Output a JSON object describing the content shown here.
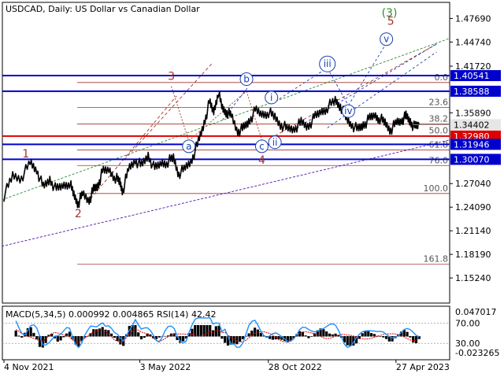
{
  "chart_data": {
    "type": "line",
    "title": "USDCAD, Daily:  US Dollar vs Canadian Dollar",
    "ylim": [
      1.121,
      1.497
    ],
    "y_ticks": [
      "1.47690",
      "1.44740",
      "1.41720",
      "1.38588",
      "1.35890",
      "1.32980",
      "1.30070",
      "1.27040",
      "1.24090",
      "1.21140",
      "1.18190",
      "1.15240"
    ],
    "x_ticks": [
      {
        "label": "4 Nov 2021",
        "t": 0.0
      },
      {
        "label": "3 May 2022",
        "t": 0.311
      },
      {
        "label": "28 Oct 2022",
        "t": 0.605
      },
      {
        "label": "27 Apr 2023",
        "t": 0.897
      }
    ],
    "price_series": [
      [
        0.0,
        1.255
      ],
      [
        0.02,
        1.28
      ],
      [
        0.04,
        1.278
      ],
      [
        0.06,
        1.296
      ],
      [
        0.075,
        1.288
      ],
      [
        0.09,
        1.265
      ],
      [
        0.105,
        1.276
      ],
      [
        0.12,
        1.262
      ],
      [
        0.135,
        1.268
      ],
      [
        0.15,
        1.272
      ],
      [
        0.16,
        1.256
      ],
      [
        0.17,
        1.246
      ],
      [
        0.18,
        1.257
      ],
      [
        0.195,
        1.25
      ],
      [
        0.205,
        1.262
      ],
      [
        0.215,
        1.268
      ],
      [
        0.225,
        1.284
      ],
      [
        0.24,
        1.288
      ],
      [
        0.255,
        1.278
      ],
      [
        0.265,
        1.272
      ],
      [
        0.272,
        1.262
      ],
      [
        0.285,
        1.288
      ],
      [
        0.3,
        1.3
      ],
      [
        0.315,
        1.292
      ],
      [
        0.33,
        1.306
      ],
      [
        0.345,
        1.288
      ],
      [
        0.36,
        1.296
      ],
      [
        0.375,
        1.298
      ],
      [
        0.388,
        1.302
      ],
      [
        0.4,
        1.283
      ],
      [
        0.415,
        1.289
      ],
      [
        0.43,
        1.301
      ],
      [
        0.445,
        1.322
      ],
      [
        0.458,
        1.346
      ],
      [
        0.47,
        1.371
      ],
      [
        0.48,
        1.36
      ],
      [
        0.49,
        1.385
      ],
      [
        0.5,
        1.364
      ],
      [
        0.51,
        1.36
      ],
      [
        0.52,
        1.355
      ],
      [
        0.535,
        1.336
      ],
      [
        0.548,
        1.339
      ],
      [
        0.56,
        1.348
      ],
      [
        0.575,
        1.361
      ],
      [
        0.59,
        1.357
      ],
      [
        0.605,
        1.36
      ],
      [
        0.62,
        1.353
      ],
      [
        0.635,
        1.344
      ],
      [
        0.65,
        1.338
      ],
      [
        0.665,
        1.34
      ],
      [
        0.68,
        1.346
      ],
      [
        0.695,
        1.342
      ],
      [
        0.71,
        1.352
      ],
      [
        0.725,
        1.36
      ],
      [
        0.74,
        1.366
      ],
      [
        0.758,
        1.374
      ],
      [
        0.77,
        1.368
      ],
      [
        0.782,
        1.352
      ],
      [
        0.795,
        1.345
      ],
      [
        0.81,
        1.337
      ],
      [
        0.822,
        1.344
      ],
      [
        0.835,
        1.35
      ],
      [
        0.848,
        1.356
      ],
      [
        0.86,
        1.352
      ],
      [
        0.872,
        1.346
      ],
      [
        0.885,
        1.338
      ],
      [
        0.898,
        1.346
      ],
      [
        0.91,
        1.35
      ],
      [
        0.92,
        1.354
      ],
      [
        0.93,
        1.348
      ],
      [
        0.94,
        1.34
      ],
      [
        0.95,
        1.344
      ]
    ],
    "horizontal_levels": [
      {
        "value": 1.40541,
        "color": "#0000cc",
        "label": "1.40541"
      },
      {
        "value": 1.38588,
        "color": "#0000cc",
        "label": "1.38588"
      },
      {
        "value": 1.3298,
        "color": "#dd0000",
        "label": "1.32980"
      },
      {
        "value": 1.31946,
        "color": "#0000cc",
        "label": "1.31946"
      },
      {
        "value": 1.3007,
        "color": "#0000cc",
        "label": "1.30070"
      }
    ],
    "current_price": {
      "value": 1.34402,
      "label": "1.34402"
    },
    "fibonacci_levels": [
      {
        "label": "0.0",
        "value": 1.3968
      },
      {
        "label": "23.6",
        "value": 1.3655
      },
      {
        "label": "38.2",
        "value": 1.345
      },
      {
        "label": "50.0",
        "value": 1.33
      },
      {
        "label": "61.8",
        "value": 1.3125
      },
      {
        "label": "76.0",
        "value": 1.293
      },
      {
        "label": "100.0",
        "value": 1.258
      },
      {
        "label": "161.8",
        "value": 1.1695
      }
    ],
    "wave_labels": [
      {
        "text": "1",
        "t": 0.05,
        "y": 1.308,
        "color": "#a0362b",
        "circled": false
      },
      {
        "text": "2",
        "t": 0.17,
        "y": 1.233,
        "color": "#a0362b",
        "circled": false
      },
      {
        "text": "3",
        "t": 0.383,
        "y": 1.405,
        "color": "#a0362b",
        "circled": false
      },
      {
        "text": "4",
        "t": 0.59,
        "y": 1.3,
        "color": "#a0362b",
        "circled": false
      },
      {
        "text": "5",
        "t": 0.885,
        "y": 1.474,
        "color": "#a0362b",
        "circled": false
      },
      {
        "text": "(3)",
        "t": 0.882,
        "y": 1.484,
        "color": "#2e8b2e",
        "circled": false
      },
      {
        "text": "a",
        "t": 0.423,
        "y": 1.317,
        "color": "#1a3fb0",
        "circled": true
      },
      {
        "text": "b",
        "t": 0.555,
        "y": 1.401,
        "color": "#1a3fb0",
        "circled": true
      },
      {
        "text": "c",
        "t": 0.59,
        "y": 1.317,
        "color": "#1a3fb0",
        "circled": true
      },
      {
        "text": "i",
        "t": 0.612,
        "y": 1.378,
        "color": "#1a3fb0",
        "circled": true
      },
      {
        "text": "ii",
        "t": 0.62,
        "y": 1.322,
        "color": "#1a3fb0",
        "circled": true
      },
      {
        "text": "iii",
        "t": 0.74,
        "y": 1.42,
        "color": "#1a3fb0",
        "circled": true
      },
      {
        "text": "iv",
        "t": 0.788,
        "y": 1.361,
        "color": "#1a3fb0",
        "circled": true
      },
      {
        "text": "v",
        "t": 0.875,
        "y": 1.451,
        "color": "#1a3fb0",
        "circled": true
      }
    ],
    "indicator": {
      "title": "MACD(5,34,5) 0.000992 0.004865 RSI(14) 42.42",
      "macd_ticks": [
        "0.047017",
        "-0.023265"
      ],
      "rsi_ticks": [
        "70.00",
        "30.00"
      ],
      "rsi_levels": [
        70,
        30
      ]
    }
  }
}
